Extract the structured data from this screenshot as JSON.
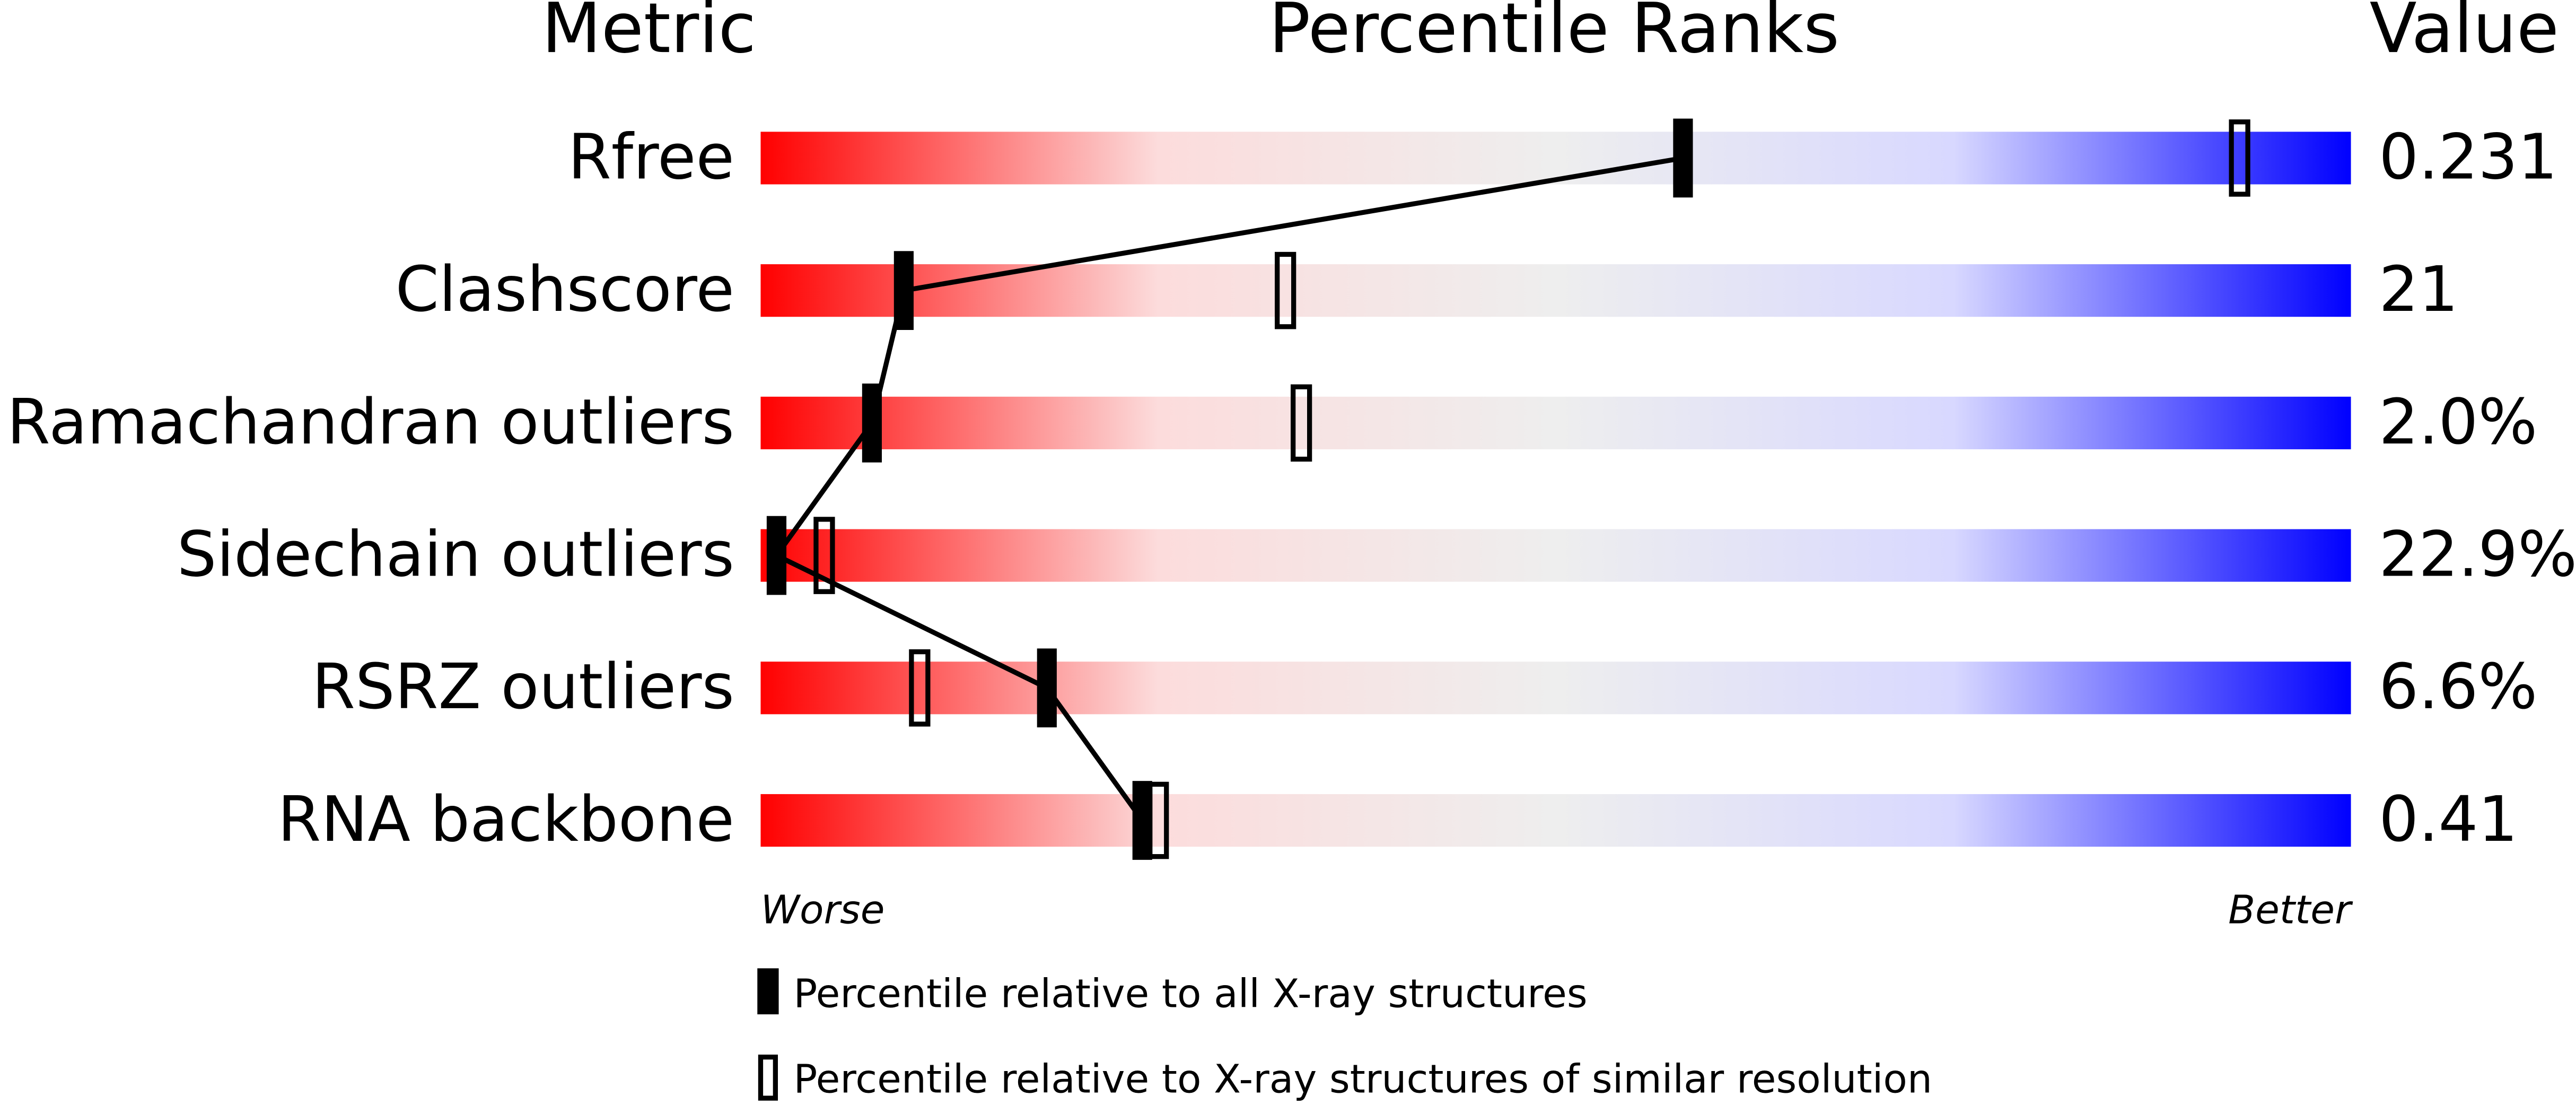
{
  "chart_data": {
    "type": "percentile",
    "title": "Percentile Ranks",
    "metric_header": "Metric",
    "value_header": "Value",
    "categories": [
      "Rfree",
      "Clashscore",
      "Ramachandran outliers",
      "Sidechain outliers",
      "RSRZ outliers",
      "RNA backbone"
    ],
    "metric_values": [
      "0.231",
      "21",
      "2.0%",
      "22.9%",
      "6.6%",
      "0.41"
    ],
    "series": [
      {
        "name": "Percentile relative to all X-ray structures",
        "color": "#000000",
        "filled": true,
        "values": [
          58,
          9,
          7,
          1,
          18,
          24
        ]
      },
      {
        "name": "Percentile relative to X-ray structures of similar resolution",
        "color": "#000000",
        "filled": false,
        "values": [
          93,
          33,
          34,
          4,
          10,
          25
        ]
      }
    ],
    "xlim": [
      0,
      100
    ],
    "low_label": "Worse",
    "high_label": "Better",
    "gradient": [
      "#ff0000",
      "#fcdcdc",
      "#eeeeee",
      "#d8d8ff",
      "#0000ff"
    ]
  }
}
